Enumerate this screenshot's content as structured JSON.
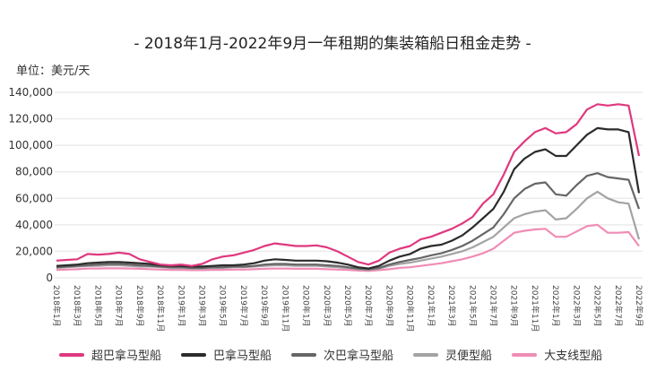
{
  "chart_data": {
    "type": "line",
    "title": "- 2018年1月-2022年9月一年租期的集装箱船日租金走势 -",
    "ylabel": "单位：美元/天",
    "ylim": [
      0,
      140000
    ],
    "yticks": [
      "0",
      "20,000",
      "40,000",
      "60,000",
      "80,000",
      "100,000",
      "120,000",
      "140,000"
    ],
    "xticks": [
      "2018年1月",
      "2018年3月",
      "2018年5月",
      "2018年7月",
      "2018年9月",
      "2018年11月",
      "2019年1月",
      "2019年3月",
      "2019年5月",
      "2019年7月",
      "2019年9月",
      "2019年11月",
      "2020年1月",
      "2020年3月",
      "2020年5月",
      "2020年7月",
      "2020年9月",
      "2020年11月",
      "2021年1月",
      "2021年3月",
      "2021年5月",
      "2021年7月",
      "2021年9月",
      "2021年11月",
      "2022年1月",
      "2022年3月",
      "2022年5月",
      "2022年7月",
      "2022年9月"
    ],
    "grid": true,
    "legend": "bottom",
    "series": [
      {
        "name": "超巴拿马型船",
        "color": "#e0387e",
        "values": [
          13000,
          13500,
          14000,
          18000,
          17500,
          18000,
          19000,
          18000,
          14000,
          12000,
          10000,
          9500,
          10000,
          9000,
          10500,
          14000,
          16000,
          17000,
          19000,
          21000,
          24000,
          26000,
          25000,
          24000,
          24000,
          24500,
          23000,
          20000,
          16000,
          12000,
          10000,
          13000,
          19000,
          22000,
          24000,
          29000,
          31000,
          34000,
          37000,
          41000,
          46000,
          56000,
          63000,
          78000,
          95000,
          103000,
          110000,
          113000,
          109000,
          110000,
          116000,
          127000,
          131000,
          130000,
          131000,
          130000,
          92000
        ]
      },
      {
        "name": "巴拿马型船",
        "color": "#2b2b2b",
        "values": [
          9000,
          9500,
          10000,
          11000,
          11500,
          12000,
          12000,
          11500,
          11000,
          10500,
          9500,
          9000,
          9000,
          8500,
          8500,
          9000,
          9500,
          9500,
          10000,
          11000,
          13000,
          14000,
          13500,
          13000,
          13000,
          13000,
          12500,
          11500,
          10000,
          8000,
          7000,
          9000,
          13000,
          16000,
          18000,
          22000,
          24000,
          25000,
          28000,
          32000,
          38000,
          45000,
          52000,
          65000,
          82000,
          90000,
          95000,
          97000,
          92000,
          92000,
          100000,
          108000,
          113000,
          112000,
          112000,
          110000,
          64000
        ]
      },
      {
        "name": "次巴拿马型船",
        "color": "#666666",
        "values": [
          8000,
          8500,
          9000,
          9500,
          10000,
          10500,
          10500,
          10000,
          9500,
          9000,
          8500,
          8000,
          8000,
          7500,
          7500,
          8000,
          8000,
          8500,
          8500,
          9000,
          10000,
          10500,
          10500,
          10000,
          10000,
          10000,
          9500,
          9000,
          8000,
          7000,
          6500,
          7500,
          10000,
          12000,
          13500,
          15000,
          17000,
          18500,
          21000,
          24000,
          28000,
          33000,
          38000,
          48000,
          60000,
          67000,
          71000,
          72000,
          63000,
          62000,
          70000,
          77000,
          79000,
          76000,
          75000,
          74000,
          52000
        ]
      },
      {
        "name": "灵便型船",
        "color": "#a3a3a3",
        "values": [
          7500,
          8000,
          8500,
          9000,
          9000,
          9500,
          9500,
          9000,
          8500,
          8500,
          8000,
          7500,
          7500,
          7000,
          7000,
          7500,
          7500,
          8000,
          8000,
          8500,
          9000,
          9500,
          9500,
          9000,
          9000,
          9000,
          8500,
          8000,
          7500,
          6500,
          6000,
          7000,
          9000,
          10500,
          11500,
          13000,
          14500,
          16000,
          18000,
          20000,
          23000,
          27000,
          31000,
          38000,
          45000,
          48000,
          50000,
          51000,
          44000,
          45000,
          52000,
          60000,
          65000,
          60000,
          57000,
          56000,
          29000
        ]
      },
      {
        "name": "大支线型船",
        "color": "#f08cb5",
        "values": [
          6000,
          6200,
          6500,
          7000,
          7000,
          7200,
          7200,
          7000,
          6800,
          6500,
          6200,
          6000,
          6000,
          5800,
          5800,
          6000,
          6000,
          6200,
          6200,
          6500,
          6800,
          7000,
          7000,
          6800,
          6800,
          6800,
          6500,
          6200,
          6000,
          5500,
          5200,
          5800,
          6500,
          7500,
          8000,
          9000,
          10000,
          11000,
          12500,
          14000,
          16000,
          18500,
          22000,
          28000,
          34000,
          35500,
          36500,
          37000,
          31000,
          31000,
          35000,
          39000,
          40000,
          34000,
          34000,
          34500,
          24000
        ]
      }
    ]
  }
}
